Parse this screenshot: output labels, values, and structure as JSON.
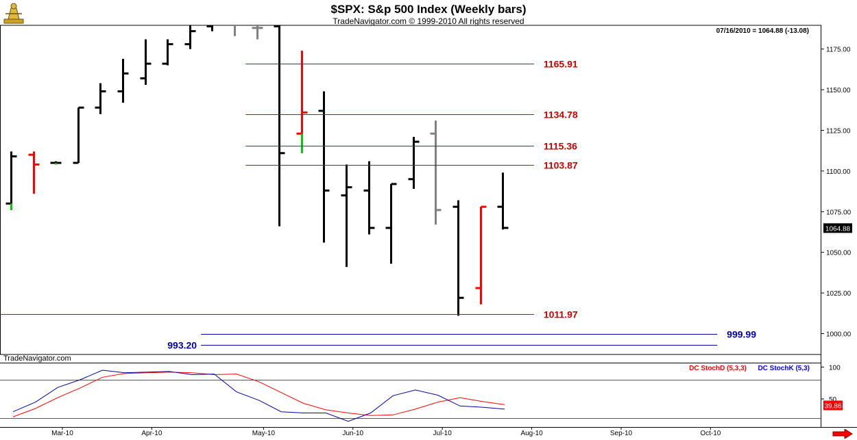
{
  "header": {
    "title": "$SPX:  S&p 500 Index  (Weekly bars)",
    "subtitle": "TradeNavigator.com © 1999-2010 All rights reserved",
    "last_quote": "07/16/2010 = 1064.88 (-13.08)",
    "watermark": "TradeNavigator.com"
  },
  "colors": {
    "up": "#000000",
    "down": "#ff0000",
    "gap_up": "#00cc00",
    "neutral": "#808080",
    "level_red": "#cc0000",
    "level_blue": "#0000aa",
    "stoch_d": "#ff0000",
    "stoch_k": "#0000ff"
  },
  "chart_data": [
    {
      "type": "ohlc",
      "title": "$SPX:  S&p 500 Index  (Weekly bars)",
      "ylim": [
        990,
        1195
      ],
      "y_ticks": [
        1000,
        1025,
        1050,
        1075,
        1100,
        1125,
        1150,
        1175
      ],
      "y_tick_labels": [
        "1000.00",
        "1025.00",
        "1050.00",
        "1075.00",
        "1100.00",
        "1125.00",
        "1150.00",
        "1175.00"
      ],
      "x_labels": [
        "Mar-10",
        "Apr-10",
        "May-10",
        "Jun-10",
        "Jul-10",
        "Aug-10",
        "Sep-10",
        "Oct-10"
      ],
      "x_label_week": [
        2.3,
        6.3,
        11.3,
        15.3,
        19.3,
        23.3,
        27.3,
        31.3
      ],
      "last_price": 1064.88,
      "last_price_label": "1064.88",
      "bars": [
        {
          "w": 0,
          "o": 1080,
          "h": 1112,
          "l": 1076,
          "c": 1109,
          "color": "black"
        },
        {
          "w": 1,
          "o": 1110,
          "h": 1112,
          "l": 1086,
          "c": 1104,
          "color": "red"
        },
        {
          "w": 2,
          "o": 1105,
          "h": 1106,
          "l": 1104,
          "c": 1105,
          "color": "black"
        },
        {
          "w": 3,
          "o": 1105,
          "h": 1139,
          "l": 1105,
          "c": 1139,
          "color": "black"
        },
        {
          "w": 4,
          "o": 1139,
          "h": 1154,
          "l": 1135,
          "c": 1149,
          "color": "black"
        },
        {
          "w": 5,
          "o": 1149,
          "h": 1169,
          "l": 1142,
          "c": 1160,
          "color": "black"
        },
        {
          "w": 6,
          "o": 1157,
          "h": 1181,
          "l": 1153,
          "c": 1166,
          "color": "black"
        },
        {
          "w": 7,
          "o": 1166,
          "h": 1181,
          "l": 1165,
          "c": 1178,
          "color": "black"
        },
        {
          "w": 8,
          "o": 1178,
          "h": 1195,
          "l": 1175,
          "c": 1186,
          "color": "black"
        },
        {
          "w": 9,
          "o": 1189,
          "h": 1220,
          "l": 1186,
          "c": 1200,
          "color": "black"
        },
        {
          "w": 10,
          "o": 1200,
          "h": 1215,
          "l": 1183,
          "c": 1198,
          "color": "gray"
        },
        {
          "w": 11,
          "o": 1188,
          "h": 1200,
          "l": 1181,
          "c": 1188,
          "color": "gray"
        },
        {
          "w": 12,
          "o": 1189,
          "h": 1205,
          "l": 1066,
          "c": 1111,
          "color": "black"
        },
        {
          "w": 13,
          "o": 1123,
          "h": 1174,
          "l": 1111,
          "c": 1136,
          "color": "red"
        },
        {
          "w": 14,
          "o": 1137,
          "h": 1149,
          "l": 1056,
          "c": 1088,
          "color": "black"
        },
        {
          "w": 15,
          "o": 1085,
          "h": 1104,
          "l": 1041,
          "c": 1090,
          "color": "black"
        },
        {
          "w": 16,
          "o": 1088,
          "h": 1106,
          "l": 1061,
          "c": 1065,
          "color": "black"
        },
        {
          "w": 17,
          "o": 1065,
          "h": 1092,
          "l": 1043,
          "c": 1092,
          "color": "black"
        },
        {
          "w": 18,
          "o": 1095,
          "h": 1121,
          "l": 1089,
          "c": 1118,
          "color": "black"
        },
        {
          "w": 19,
          "o": 1123,
          "h": 1131,
          "l": 1067,
          "c": 1076,
          "color": "gray"
        },
        {
          "w": 20,
          "o": 1078,
          "h": 1082,
          "l": 1011,
          "c": 1022,
          "color": "black"
        },
        {
          "w": 21,
          "o": 1028,
          "h": 1078,
          "l": 1018,
          "c": 1078,
          "color": "red"
        },
        {
          "w": 22,
          "o": 1078,
          "h": 1099,
          "l": 1064,
          "c": 1065,
          "color": "black"
        }
      ],
      "green_wicks": [
        {
          "w": 0,
          "from": 1076,
          "to": 1080
        },
        {
          "w": 2,
          "from": 1104,
          "to": 1105
        },
        {
          "w": 13,
          "from": 1111,
          "to": 1123
        }
      ],
      "levels": [
        {
          "value": 1165.91,
          "label": "1165.91",
          "color": "red",
          "from_week": 10.5,
          "to_week": 23.4,
          "label_side": "right"
        },
        {
          "value": 1134.78,
          "label": "1134.78",
          "color": "red",
          "from_week": 10.5,
          "to_week": 23.4,
          "label_side": "right"
        },
        {
          "value": 1115.36,
          "label": "1115.36",
          "color": "red",
          "from_week": 10.5,
          "to_week": 23.4,
          "label_side": "right"
        },
        {
          "value": 1103.87,
          "label": "1103.87",
          "color": "red",
          "from_week": 10.5,
          "to_week": 23.4,
          "label_side": "right"
        },
        {
          "value": 1011.97,
          "label": "1011.97",
          "color": "red",
          "from_week": -0.5,
          "to_week": 23.4,
          "label_side": "right"
        },
        {
          "value": 999.99,
          "label": "999.99",
          "color": "blue",
          "from_week": 8.5,
          "to_week": 31.6,
          "label_side": "right"
        },
        {
          "value": 993.2,
          "label": "993.20",
          "color": "blue",
          "from_week": 8.5,
          "to_week": 31.6,
          "label_side": "left"
        }
      ]
    },
    {
      "type": "line",
      "legend": [
        "DC StochD (5,3,3)",
        "DC StochK (5,3)"
      ],
      "ylim": [
        0,
        100
      ],
      "y_ticks": [
        50,
        100
      ],
      "y_tick_labels": [
        "50",
        "100"
      ],
      "reference_lines": [
        80,
        20
      ],
      "last_value": 39.86,
      "last_value_label": "39.86",
      "series": [
        {
          "name": "DC StochD (5,3,3)",
          "color": "red",
          "values": [
            22,
            35,
            52,
            67,
            84,
            90,
            91,
            92,
            91,
            88,
            89,
            77,
            60,
            43,
            33,
            28,
            24,
            25,
            34,
            45,
            52,
            46,
            41
          ]
        },
        {
          "name": "DC StochK (5,3)",
          "color": "blue",
          "values": [
            30,
            45,
            68,
            80,
            95,
            91,
            92,
            93,
            88,
            89,
            61,
            48,
            30,
            28,
            28,
            15,
            28,
            55,
            64,
            56,
            39,
            37,
            34
          ]
        }
      ]
    }
  ]
}
